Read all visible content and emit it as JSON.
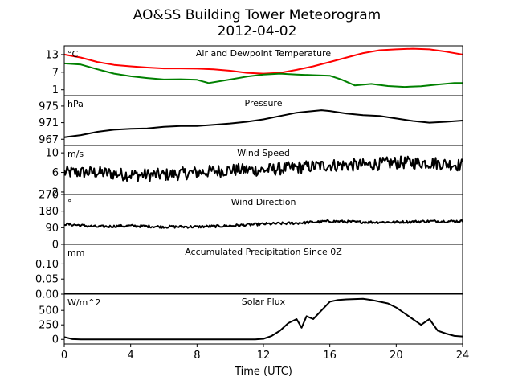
{
  "figure": {
    "title_line1": "AO&SS Building Tower Meteorogram",
    "title_line2": "2012-04-02",
    "xlabel": "Time (UTC)",
    "xticks": [
      0,
      4,
      8,
      12,
      16,
      20,
      24
    ],
    "xlim": [
      0,
      24
    ]
  },
  "chart_data": [
    {
      "type": "line",
      "title": "Air and Dewpoint Temperature",
      "unit": "°C",
      "ylim": [
        -1,
        16
      ],
      "yticks": [
        1,
        7,
        13
      ],
      "series": [
        {
          "color": "#ff0000",
          "x": [
            0,
            1,
            2,
            3,
            4,
            5,
            6,
            7,
            8,
            9,
            10,
            11,
            12,
            13,
            14,
            15,
            16,
            17,
            18,
            19,
            20,
            21,
            22,
            23,
            24
          ],
          "y": [
            13,
            12,
            10.5,
            9.5,
            9,
            8.6,
            8.3,
            8.3,
            8.2,
            8,
            7.5,
            6.8,
            6.5,
            6.8,
            7.8,
            9,
            10.5,
            12,
            13.5,
            14.5,
            14.8,
            15,
            14.8,
            14,
            13
          ]
        },
        {
          "color": "#008000",
          "x": [
            0,
            1,
            2,
            3,
            4,
            5,
            6,
            7,
            8,
            8.7,
            10,
            11,
            12,
            13,
            14,
            15,
            16,
            16.7,
            17.5,
            18.5,
            19.5,
            20.5,
            21.5,
            22.5,
            23.5,
            24
          ],
          "y": [
            10,
            9.6,
            8,
            6.5,
            5.6,
            5,
            4.5,
            4.6,
            4.4,
            3.3,
            4.5,
            5.5,
            6.2,
            6.5,
            6.2,
            6,
            5.8,
            4.5,
            2.5,
            3,
            2.3,
            2,
            2.2,
            2.8,
            3.3,
            3.3
          ]
        }
      ]
    },
    {
      "type": "line",
      "title": "Pressure",
      "unit": "hPa",
      "ylim": [
        965.5,
        977.5
      ],
      "yticks": [
        967,
        971,
        975
      ],
      "series": [
        {
          "color": "#000000",
          "x": [
            0,
            1,
            2,
            3,
            4,
            5,
            6,
            7,
            8,
            9,
            10,
            11,
            12,
            13,
            14,
            15,
            15.5,
            16,
            17,
            18,
            19,
            20,
            21,
            22,
            23,
            24
          ],
          "y": [
            967.5,
            968,
            968.8,
            969.3,
            969.5,
            969.6,
            970,
            970.2,
            970.2,
            970.5,
            970.8,
            971.2,
            971.8,
            972.6,
            973.4,
            973.8,
            974,
            973.8,
            973.2,
            972.8,
            972.6,
            972,
            971.4,
            971,
            971.2,
            971.5
          ]
        }
      ]
    },
    {
      "type": "line",
      "title": "Wind Speed",
      "unit": "m/s",
      "ylim": [
        1.5,
        11.5
      ],
      "yticks": [
        2,
        6,
        10
      ],
      "series": [
        {
          "color": "#000000",
          "noise": 1.3,
          "x": [
            0,
            2,
            4,
            6,
            8,
            10,
            12,
            14,
            16,
            18,
            20,
            22,
            24
          ],
          "y": [
            6,
            6,
            5.5,
            5.5,
            6,
            6.5,
            6.5,
            7,
            7.5,
            7.5,
            8,
            8,
            7.5
          ]
        }
      ]
    },
    {
      "type": "line",
      "title": "Wind Direction",
      "unit": "°",
      "ylim": [
        0,
        270
      ],
      "yticks": [
        0,
        90,
        180,
        270
      ],
      "series": [
        {
          "color": "#000000",
          "noise": 7,
          "x": [
            0,
            2,
            4,
            6,
            8,
            10,
            12,
            14,
            16,
            18,
            20,
            22,
            24
          ],
          "y": [
            110,
            95,
            100,
            95,
            95,
            100,
            110,
            115,
            125,
            120,
            120,
            125,
            125
          ]
        }
      ]
    },
    {
      "type": "line",
      "title": "Accumulated Precipitation Since 0Z",
      "unit": "mm",
      "ylim": [
        0,
        0.165
      ],
      "yticks": [
        0.0,
        0.05,
        0.1
      ],
      "ytick_labels": [
        "0.00",
        "0.05",
        "0.10"
      ],
      "series": [
        {
          "color": "#000000",
          "x": [
            0,
            24
          ],
          "y": [
            0,
            0
          ]
        }
      ]
    },
    {
      "type": "line",
      "title": "Solar Flux",
      "unit": "W/m^2",
      "ylim": [
        -80,
        780
      ],
      "yticks": [
        0,
        250,
        500
      ],
      "series": [
        {
          "color": "#000000",
          "x": [
            0,
            0.5,
            1,
            11.5,
            12,
            12.5,
            13,
            13.5,
            14,
            14.3,
            14.6,
            15,
            15.5,
            16,
            16.5,
            17,
            17.5,
            18,
            18.5,
            19,
            19.5,
            20,
            20.5,
            21,
            21.5,
            22,
            22.5,
            23,
            23.5,
            24
          ],
          "y": [
            40,
            5,
            0,
            0,
            10,
            60,
            150,
            280,
            350,
            200,
            400,
            350,
            500,
            650,
            680,
            690,
            695,
            700,
            680,
            650,
            620,
            550,
            450,
            350,
            250,
            350,
            150,
            100,
            60,
            50
          ]
        }
      ]
    }
  ]
}
